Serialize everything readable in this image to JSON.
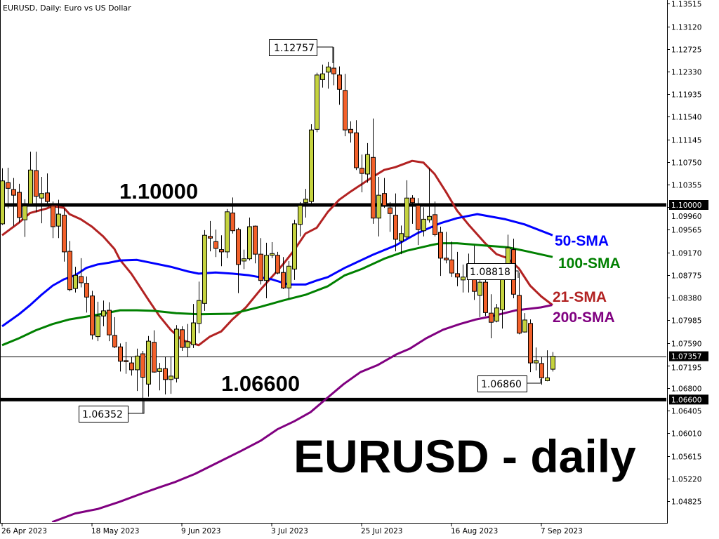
{
  "header": {
    "title": "EURUSD, Daily:  Euro vs US Dollar"
  },
  "annotations": {
    "level_high": "1.10000",
    "level_low": "1.06600",
    "watermark": "EURUSD - daily",
    "callouts": {
      "swing_high": "1.12757",
      "recent_high": "1.08818",
      "recent_low": "1.06860",
      "swing_low": "1.06352"
    },
    "ma_labels": {
      "sma50": "50-SMA",
      "sma100": "100-SMA",
      "sma21": "21-SMA",
      "sma200": "200-SMA"
    }
  },
  "colors": {
    "bull": "#c5d33f",
    "bear": "#f2602a",
    "sma21": "#b22222",
    "sma50": "#0000ff",
    "sma100": "#008000",
    "sma200": "#800080",
    "grid_line": "#000000"
  },
  "chart_data": {
    "type": "candlestick",
    "symbol": "EURUSD",
    "timeframe": "Daily",
    "ylim": [
      1.0445,
      1.1368
    ],
    "y_ticks": [
      "1.13515",
      "1.13120",
      "1.12725",
      "1.12330",
      "1.11935",
      "1.11540",
      "1.11145",
      "1.10750",
      "1.10355",
      "1.09960",
      "1.09565",
      "1.09170",
      "1.08775",
      "1.08380",
      "1.07985",
      "1.07590",
      "1.07195",
      "1.06800",
      "1.06405",
      "1.06010",
      "1.05615",
      "1.05220",
      "1.04825"
    ],
    "highlighted_prices": [
      "1.10000",
      "1.07357",
      "1.06600"
    ],
    "last_price": 1.07357,
    "horizontal_levels": [
      1.1,
      1.066
    ],
    "x_ticks": [
      {
        "index": 0,
        "label": "26 Apr 2023"
      },
      {
        "index": 16,
        "label": "18 May 2023"
      },
      {
        "index": 32,
        "label": "9 Jun 2023"
      },
      {
        "index": 48,
        "label": "3 Jul 2023"
      },
      {
        "index": 64,
        "label": "25 Jul 2023"
      },
      {
        "index": 80,
        "label": "16 Aug 2023"
      },
      {
        "index": 96,
        "label": "7 Sep 2023"
      }
    ],
    "ohlc_columns": [
      "open",
      "high",
      "low",
      "close"
    ],
    "candles": [
      [
        1.0967,
        1.1064,
        1.0965,
        1.1042
      ],
      [
        1.1039,
        1.1065,
        1.0994,
        1.1029
      ],
      [
        1.1027,
        1.1047,
        1.0963,
        1.1017
      ],
      [
        1.1022,
        1.1037,
        1.0969,
        1.0978
      ],
      [
        1.0974,
        1.101,
        1.0944,
        1.0998
      ],
      [
        1.1002,
        1.1093,
        1.0998,
        1.1061
      ],
      [
        1.106,
        1.1093,
        1.0987,
        1.1015
      ],
      [
        1.1012,
        1.1049,
        1.0968,
        1.102
      ],
      [
        1.1021,
        1.1055,
        1.0998,
        1.1006
      ],
      [
        1.0998,
        1.1006,
        1.0942,
        1.0962
      ],
      [
        1.0963,
        1.1009,
        1.0942,
        1.0984
      ],
      [
        1.0982,
        1.0994,
        1.0901,
        1.0918
      ],
      [
        1.0919,
        1.0937,
        1.0849,
        1.0852
      ],
      [
        1.0854,
        1.0892,
        1.0847,
        1.0877
      ],
      [
        1.0875,
        1.0907,
        1.0856,
        1.0864
      ],
      [
        1.0863,
        1.0875,
        1.0812,
        1.0839
      ],
      [
        1.0841,
        1.085,
        1.0765,
        1.0773
      ],
      [
        1.077,
        1.0831,
        1.0762,
        1.0806
      ],
      [
        1.0806,
        1.0833,
        1.0788,
        1.0815
      ],
      [
        1.0816,
        1.083,
        1.0762,
        1.0773
      ],
      [
        1.0772,
        1.0804,
        1.075,
        1.0752
      ],
      [
        1.0752,
        1.0758,
        1.0709,
        1.0727
      ],
      [
        1.0728,
        1.0761,
        1.0705,
        1.0727
      ],
      [
        1.0724,
        1.0734,
        1.0702,
        1.0712
      ],
      [
        1.0712,
        1.0749,
        1.0675,
        1.0736
      ],
      [
        1.074,
        1.0745,
        1.06352,
        1.0699
      ],
      [
        1.0687,
        1.0771,
        1.0665,
        1.0762
      ],
      [
        1.076,
        1.0781,
        1.0707,
        1.0708
      ],
      [
        1.0709,
        1.0724,
        1.0676,
        1.0714
      ],
      [
        1.0714,
        1.0735,
        1.0669,
        1.0695
      ],
      [
        1.0695,
        1.0735,
        1.067,
        1.0701
      ],
      [
        1.0697,
        1.079,
        1.069,
        1.0783
      ],
      [
        1.0782,
        1.0788,
        1.0745,
        1.0751
      ],
      [
        1.0751,
        1.0792,
        1.0735,
        1.0761
      ],
      [
        1.0756,
        1.0827,
        1.075,
        1.0794
      ],
      [
        1.0793,
        1.0866,
        1.0776,
        1.0833
      ],
      [
        1.0828,
        1.0956,
        1.0815,
        1.0947
      ],
      [
        1.0945,
        1.0972,
        1.0919,
        1.0942
      ],
      [
        1.0936,
        1.0957,
        1.0909,
        1.0924
      ],
      [
        1.0922,
        1.0947,
        1.0893,
        1.0918
      ],
      [
        1.0918,
        1.0993,
        1.0907,
        1.0988
      ],
      [
        1.0986,
        1.1013,
        1.095,
        1.0955
      ],
      [
        1.0957,
        1.096,
        1.0846,
        1.0896
      ],
      [
        1.0902,
        1.0922,
        1.0888,
        1.0906
      ],
      [
        1.0906,
        1.0978,
        1.0903,
        1.0962
      ],
      [
        1.0963,
        1.0964,
        1.0898,
        1.0914
      ],
      [
        1.0914,
        1.0942,
        1.0861,
        1.0868
      ],
      [
        1.0868,
        1.0934,
        1.0837,
        1.0912
      ],
      [
        1.0912,
        1.0935,
        1.0907,
        1.0915
      ],
      [
        1.0912,
        1.0918,
        1.0879,
        1.0881
      ],
      [
        1.0882,
        1.0909,
        1.0853,
        1.0855
      ],
      [
        1.0855,
        1.0902,
        1.0836,
        1.0893
      ],
      [
        1.0888,
        1.0974,
        1.0869,
        1.0967
      ],
      [
        1.0966,
        1.1005,
        1.0945,
        1.0999
      ],
      [
        1.1004,
        1.1028,
        1.0978,
        1.101
      ],
      [
        1.1006,
        1.1141,
        1.1,
        1.1131
      ],
      [
        1.1132,
        1.1231,
        1.1127,
        1.1227
      ],
      [
        1.1219,
        1.1245,
        1.1205,
        1.1229
      ],
      [
        1.1232,
        1.125,
        1.1203,
        1.1241
      ],
      [
        1.1239,
        1.12757,
        1.1209,
        1.1229
      ],
      [
        1.1227,
        1.1242,
        1.1175,
        1.1202
      ],
      [
        1.12,
        1.1229,
        1.112,
        1.1131
      ],
      [
        1.1132,
        1.1146,
        1.1109,
        1.1126
      ],
      [
        1.1126,
        1.1148,
        1.1061,
        1.1065
      ],
      [
        1.1064,
        1.1088,
        1.1022,
        1.1055
      ],
      [
        1.1054,
        1.1108,
        1.1039,
        1.1088
      ],
      [
        1.1083,
        1.1151,
        1.0967,
        1.0977
      ],
      [
        1.0977,
        1.1049,
        1.0945,
        1.1017
      ],
      [
        1.102,
        1.1047,
        1.0995,
        1.0999
      ],
      [
        1.0995,
        1.1005,
        1.0953,
        1.0985
      ],
      [
        1.0982,
        1.102,
        1.0919,
        1.094
      ],
      [
        1.0937,
        1.0964,
        1.0914,
        1.095
      ],
      [
        1.0944,
        1.1043,
        1.094,
        1.1012
      ],
      [
        1.1012,
        1.1017,
        1.0967,
        1.1004
      ],
      [
        1.0999,
        1.1012,
        1.093,
        1.0957
      ],
      [
        1.0955,
        1.0996,
        1.0945,
        1.0975
      ],
      [
        1.0974,
        1.1064,
        1.0969,
        1.098
      ],
      [
        1.0983,
        1.1006,
        1.0945,
        1.0948
      ],
      [
        1.0952,
        1.0962,
        1.0876,
        1.0907
      ],
      [
        1.0907,
        1.0953,
        1.0898,
        1.0904
      ],
      [
        1.0904,
        1.0936,
        1.0874,
        1.0881
      ],
      [
        1.088,
        1.0918,
        1.0858,
        1.0874
      ],
      [
        1.0869,
        1.0896,
        1.0847,
        1.0874
      ],
      [
        1.0874,
        1.0915,
        1.0847,
        1.0897
      ],
      [
        1.0895,
        1.0929,
        1.0834,
        1.0849
      ],
      [
        1.0842,
        1.0874,
        1.0804,
        1.0865
      ],
      [
        1.0865,
        1.0879,
        1.0806,
        1.0812
      ],
      [
        1.0811,
        1.0844,
        1.0767,
        1.0795
      ],
      [
        1.0797,
        1.0827,
        1.0795,
        1.082
      ],
      [
        1.0817,
        1.0892,
        1.0784,
        1.0882
      ],
      [
        1.0876,
        1.0948,
        1.0874,
        1.0925
      ],
      [
        1.0922,
        1.0941,
        1.0837,
        1.0844
      ],
      [
        1.0842,
        1.08818,
        1.0774,
        1.0776
      ],
      [
        1.0778,
        1.0811,
        1.0777,
        1.0799
      ],
      [
        1.0793,
        1.08,
        1.0708,
        1.0724
      ],
      [
        1.0724,
        1.0751,
        1.0711,
        1.0728
      ],
      [
        1.0723,
        1.0734,
        1.0686,
        1.0698
      ],
      [
        1.0693,
        1.0746,
        1.0692,
        1.0698
      ],
      [
        1.0713,
        1.0743,
        1.0709,
        1.07357
      ]
    ],
    "series": [
      {
        "name": "21-SMA",
        "color_key": "sma21",
        "points": [
          [
            0,
            1.0947
          ],
          [
            3,
            1.0969
          ],
          [
            5,
            1.0986
          ],
          [
            8,
            1.0994
          ],
          [
            9,
            1.0998
          ],
          [
            11,
            1.0995
          ],
          [
            12,
            1.0984
          ],
          [
            14,
            1.0975
          ],
          [
            16,
            1.0962
          ],
          [
            18,
            1.0945
          ],
          [
            20,
            1.0923
          ],
          [
            21,
            1.0904
          ],
          [
            23,
            1.088
          ],
          [
            24,
            1.0865
          ],
          [
            26,
            1.0835
          ],
          [
            28,
            1.0806
          ],
          [
            30,
            1.0782
          ],
          [
            32,
            1.0764
          ],
          [
            35,
            1.0755
          ],
          [
            37,
            1.077
          ],
          [
            39,
            1.0779
          ],
          [
            41,
            1.08
          ],
          [
            43.4,
            1.0821
          ],
          [
            46,
            1.0852
          ],
          [
            48,
            1.0874
          ],
          [
            50,
            1.0896
          ],
          [
            52,
            1.0921
          ],
          [
            54,
            1.095
          ],
          [
            56,
            1.096
          ],
          [
            58,
            1.0988
          ],
          [
            60,
            1.1009
          ],
          [
            62,
            1.1023
          ],
          [
            64,
            1.1036
          ],
          [
            66,
            1.1049
          ],
          [
            68,
            1.1061
          ],
          [
            70,
            1.1066
          ],
          [
            73,
            1.1077
          ],
          [
            75,
            1.1074
          ],
          [
            77,
            1.1054
          ],
          [
            79,
            1.1023
          ],
          [
            81,
            1.099
          ],
          [
            83,
            1.0966
          ],
          [
            86,
            1.0933
          ],
          [
            88,
            1.0914
          ],
          [
            90,
            1.0907
          ],
          [
            92,
            1.0889
          ],
          [
            94,
            1.0859
          ],
          [
            96,
            1.084
          ],
          [
            98,
            1.0825
          ]
        ]
      },
      {
        "name": "50-SMA",
        "color_key": "sma50",
        "points": [
          [
            0,
            1.0788
          ],
          [
            3,
            1.0809
          ],
          [
            5,
            1.0825
          ],
          [
            7,
            1.0843
          ],
          [
            9,
            1.0859
          ],
          [
            11,
            1.087
          ],
          [
            13,
            1.0877
          ],
          [
            15,
            1.089
          ],
          [
            17,
            1.0896
          ],
          [
            19,
            1.0899
          ],
          [
            21,
            1.0903
          ],
          [
            24,
            1.0904
          ],
          [
            27,
            1.0898
          ],
          [
            30,
            1.0892
          ],
          [
            33,
            1.0884
          ],
          [
            35,
            1.088
          ],
          [
            38,
            1.0882
          ],
          [
            41,
            1.088
          ],
          [
            44,
            1.0877
          ],
          [
            48,
            1.087
          ],
          [
            51,
            1.0861
          ],
          [
            54,
            1.0861
          ],
          [
            56,
            1.0868
          ],
          [
            58,
            1.0874
          ],
          [
            61,
            1.089
          ],
          [
            66,
            1.0913
          ],
          [
            70,
            1.0929
          ],
          [
            74,
            1.0951
          ],
          [
            78,
            1.0968
          ],
          [
            81,
            1.0977
          ],
          [
            84.6,
            1.0984
          ],
          [
            89.6,
            1.0975
          ],
          [
            93,
            1.0966
          ],
          [
            98,
            1.0947
          ]
        ]
      },
      {
        "name": "100-SMA",
        "color_key": "sma100",
        "points": [
          [
            0,
            1.0755
          ],
          [
            3,
            1.0767
          ],
          [
            6,
            1.0781
          ],
          [
            9,
            1.0792
          ],
          [
            12,
            1.08
          ],
          [
            15,
            1.0805
          ],
          [
            18,
            1.081
          ],
          [
            21,
            1.0816
          ],
          [
            24,
            1.0816
          ],
          [
            27,
            1.0815
          ],
          [
            31,
            1.0811
          ],
          [
            35,
            1.0809
          ],
          [
            41,
            1.081
          ],
          [
            46,
            1.0822
          ],
          [
            50,
            1.0833
          ],
          [
            54,
            1.0843
          ],
          [
            58,
            1.0858
          ],
          [
            61,
            1.0877
          ],
          [
            64,
            1.0888
          ],
          [
            68,
            1.0906
          ],
          [
            72,
            1.092
          ],
          [
            76,
            1.0929
          ],
          [
            78,
            1.0933
          ],
          [
            81,
            1.0933
          ],
          [
            86,
            1.0929
          ],
          [
            90,
            1.0926
          ],
          [
            93,
            1.092
          ],
          [
            98,
            1.0909
          ]
        ]
      },
      {
        "name": "200-SMA",
        "color_key": "sma200",
        "points": [
          [
            8.9,
            1.0446
          ],
          [
            13,
            1.0461
          ],
          [
            17.1,
            1.0469
          ],
          [
            20.8,
            1.0481
          ],
          [
            24.9,
            1.0496
          ],
          [
            27.8,
            1.0506
          ],
          [
            30.8,
            1.0516
          ],
          [
            34.3,
            1.053
          ],
          [
            39,
            1.0553
          ],
          [
            42.5,
            1.057
          ],
          [
            46,
            1.0588
          ],
          [
            49,
            1.0608
          ],
          [
            52,
            1.0622
          ],
          [
            54.9,
            1.0638
          ],
          [
            57.9,
            1.0663
          ],
          [
            60.8,
            1.0687
          ],
          [
            63.8,
            1.0708
          ],
          [
            66.8,
            1.072
          ],
          [
            70.2,
            1.0739
          ],
          [
            72.6,
            1.0749
          ],
          [
            75.5,
            1.0767
          ],
          [
            78.5,
            1.0782
          ],
          [
            81.5,
            1.0792
          ],
          [
            84.4,
            1.08
          ],
          [
            87.4,
            1.0806
          ],
          [
            91.5,
            1.0816
          ],
          [
            95.9,
            1.0821
          ],
          [
            97.9,
            1.0825
          ]
        ]
      }
    ]
  }
}
